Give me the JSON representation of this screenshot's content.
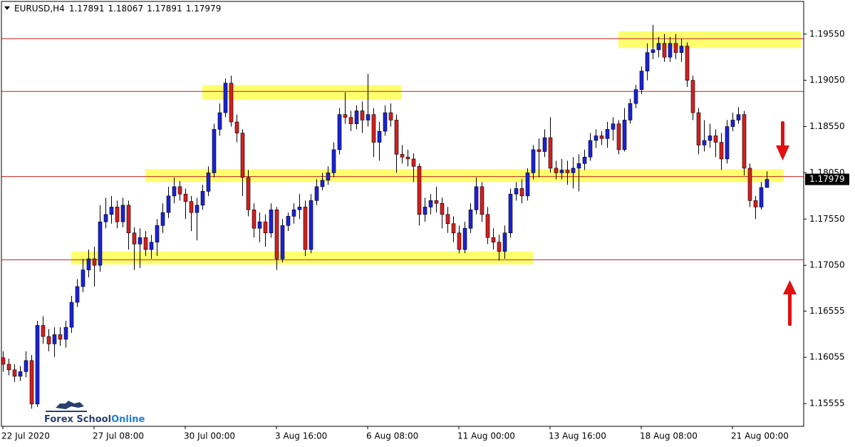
{
  "chart_data": {
    "type": "candlestick",
    "symbol": "EURUSD,H4",
    "open": [
      1.1605,
      1.1598,
      1.1592,
      1.1585,
      1.159,
      1.1602,
      1.1555,
      1.164,
      1.1628,
      1.162,
      1.163,
      1.1625,
      1.1638,
      1.1665,
      1.1682,
      1.17,
      1.1712,
      1.1705,
      1.1752,
      1.176,
      1.1768,
      1.1752,
      1.177,
      1.174,
      1.1728,
      1.1735,
      1.1722,
      1.173,
      1.1748,
      1.1762,
      1.178,
      1.179,
      1.1782,
      1.1774,
      1.1762,
      1.177,
      1.1785,
      1.1805,
      1.1852,
      1.187,
      1.1902,
      1.186,
      1.1848,
      1.18,
      1.1765,
      1.1745,
      1.1752,
      1.174,
      1.1765,
      1.1712,
      1.1748,
      1.1758,
      1.1765,
      1.1768,
      1.1722,
      1.1775,
      1.179,
      1.1797,
      1.1805,
      1.183,
      1.1868,
      1.1865,
      1.1858,
      1.1872,
      1.1862,
      1.1868,
      1.1838,
      1.185,
      1.187,
      1.1862,
      1.1825,
      1.1822,
      1.182,
      1.1812,
      1.176,
      1.1768,
      1.1775,
      1.1772,
      1.176,
      1.175,
      1.174,
      1.1722,
      1.1745,
      1.1765,
      1.179,
      1.176,
      1.1735,
      1.173,
      1.172,
      1.174,
      1.1782,
      1.1788,
      1.178,
      1.1805,
      1.183,
      1.1828,
      1.1843,
      1.181,
      1.1805,
      1.1808,
      1.1805,
      1.181,
      1.1815,
      1.1822,
      1.184,
      1.1845,
      1.1842,
      1.1852,
      1.1858,
      1.183,
      1.1862,
      1.188,
      1.1895,
      1.1915,
      1.1935,
      1.1938,
      1.1945,
      1.193,
      1.1945,
      1.1935,
      1.1942,
      1.1905,
      1.187,
      1.1835,
      1.184,
      1.1845,
      1.1838,
      1.182,
      1.1855,
      1.1862,
      1.1868,
      1.181,
      1.1775,
      1.1768,
      1.17891
    ],
    "high": [
      1.1612,
      1.1604,
      1.1598,
      1.1596,
      1.1612,
      1.1608,
      1.1645,
      1.165,
      1.1636,
      1.1638,
      1.1638,
      1.1645,
      1.1672,
      1.169,
      1.1712,
      1.1722,
      1.1725,
      1.177,
      1.1778,
      1.178,
      1.1775,
      1.1778,
      1.1775,
      1.1746,
      1.1745,
      1.1742,
      1.1738,
      1.1755,
      1.1772,
      1.179,
      1.18,
      1.1796,
      1.1788,
      1.178,
      1.1778,
      1.1792,
      1.1812,
      1.1858,
      1.188,
      1.1907,
      1.191,
      1.1868,
      1.1852,
      1.1808,
      1.1772,
      1.1762,
      1.176,
      1.1772,
      1.1768,
      1.1755,
      1.1762,
      1.1772,
      1.1782,
      1.1775,
      1.1782,
      1.1798,
      1.1805,
      1.1812,
      1.1838,
      1.1875,
      1.1892,
      1.1872,
      1.1878,
      1.1882,
      1.1912,
      1.1875,
      1.186,
      1.1878,
      1.188,
      1.1868,
      1.1835,
      1.183,
      1.1826,
      1.1815,
      1.1778,
      1.1782,
      1.179,
      1.1778,
      1.1768,
      1.1758,
      1.1748,
      1.1752,
      1.1772,
      1.18,
      1.1795,
      1.1768,
      1.1745,
      1.1738,
      1.1748,
      1.1788,
      1.1795,
      1.1798,
      1.181,
      1.1835,
      1.1842,
      1.1852,
      1.1865,
      1.1818,
      1.182,
      1.1818,
      1.1822,
      1.1825,
      1.183,
      1.1848,
      1.1852,
      1.185,
      1.186,
      1.1865,
      1.1862,
      1.1875,
      1.1885,
      1.19,
      1.192,
      1.1945,
      1.1965,
      1.1952,
      1.1955,
      1.1952,
      1.1955,
      1.195,
      1.1946,
      1.191,
      1.1875,
      1.1862,
      1.1858,
      1.1852,
      1.1848,
      1.1862,
      1.187,
      1.1876,
      1.1872,
      1.1815,
      1.178,
      1.1795,
      1.18067
    ],
    "low": [
      1.159,
      1.1586,
      1.1579,
      1.158,
      1.1584,
      1.155,
      1.1552,
      1.162,
      1.1612,
      1.1606,
      1.1618,
      1.1616,
      1.1632,
      1.166,
      1.1676,
      1.1692,
      1.1682,
      1.1698,
      1.1745,
      1.175,
      1.1745,
      1.1746,
      1.1722,
      1.17,
      1.1702,
      1.1715,
      1.1712,
      1.1715,
      1.174,
      1.1756,
      1.1772,
      1.1775,
      1.1755,
      1.1742,
      1.1732,
      1.1765,
      1.178,
      1.18,
      1.1845,
      1.1865,
      1.1855,
      1.1838,
      1.178,
      1.1758,
      1.1735,
      1.173,
      1.1725,
      1.1735,
      1.17,
      1.1708,
      1.1742,
      1.175,
      1.1755,
      1.1715,
      1.1718,
      1.177,
      1.1786,
      1.1792,
      1.18,
      1.1825,
      1.1858,
      1.185,
      1.1852,
      1.1848,
      1.1855,
      1.1822,
      1.1818,
      1.1845,
      1.1855,
      1.1805,
      1.1815,
      1.1812,
      1.1795,
      1.1748,
      1.1752,
      1.176,
      1.1762,
      1.1745,
      1.174,
      1.173,
      1.1718,
      1.1718,
      1.174,
      1.176,
      1.1752,
      1.1728,
      1.1722,
      1.171,
      1.1712,
      1.1735,
      1.1775,
      1.1772,
      1.1775,
      1.1798,
      1.18,
      1.1822,
      1.1805,
      1.1798,
      1.1798,
      1.1792,
      1.1788,
      1.1785,
      1.1808,
      1.1818,
      1.1832,
      1.1835,
      1.1832,
      1.184,
      1.1825,
      1.1828,
      1.1858,
      1.1875,
      1.189,
      1.1905,
      1.1928,
      1.193,
      1.1925,
      1.1925,
      1.1928,
      1.1925,
      1.1898,
      1.1862,
      1.1825,
      1.1828,
      1.1832,
      1.1822,
      1.1808,
      1.1815,
      1.185,
      1.1858,
      1.1802,
      1.1768,
      1.1755,
      1.1765,
      1.17891
    ],
    "close": [
      1.1598,
      1.1592,
      1.1585,
      1.159,
      1.1602,
      1.1555,
      1.164,
      1.1628,
      1.162,
      1.163,
      1.1625,
      1.1638,
      1.1665,
      1.1682,
      1.17,
      1.1712,
      1.1705,
      1.1752,
      1.176,
      1.1768,
      1.1752,
      1.177,
      1.174,
      1.1728,
      1.1735,
      1.1722,
      1.173,
      1.1748,
      1.1762,
      1.178,
      1.179,
      1.1782,
      1.1774,
      1.1762,
      1.177,
      1.1785,
      1.1805,
      1.1852,
      1.187,
      1.1902,
      1.186,
      1.1848,
      1.18,
      1.1765,
      1.1745,
      1.1752,
      1.174,
      1.1765,
      1.1712,
      1.1748,
      1.1758,
      1.1765,
      1.1768,
      1.1722,
      1.1775,
      1.179,
      1.1797,
      1.1805,
      1.183,
      1.1868,
      1.1865,
      1.1858,
      1.1872,
      1.1862,
      1.1868,
      1.1838,
      1.185,
      1.187,
      1.1862,
      1.1825,
      1.1822,
      1.182,
      1.1812,
      1.176,
      1.1768,
      1.1775,
      1.1772,
      1.176,
      1.175,
      1.174,
      1.1722,
      1.1745,
      1.1765,
      1.179,
      1.176,
      1.1735,
      1.173,
      1.172,
      1.174,
      1.1782,
      1.1788,
      1.178,
      1.1805,
      1.183,
      1.1828,
      1.1843,
      1.181,
      1.1805,
      1.1808,
      1.1805,
      1.181,
      1.1815,
      1.1822,
      1.184,
      1.1845,
      1.1842,
      1.1852,
      1.1858,
      1.183,
      1.1862,
      1.188,
      1.1895,
      1.1915,
      1.1935,
      1.1938,
      1.1945,
      1.193,
      1.1945,
      1.1935,
      1.1942,
      1.1905,
      1.187,
      1.1835,
      1.184,
      1.1845,
      1.1838,
      1.182,
      1.1855,
      1.1862,
      1.1868,
      1.181,
      1.1775,
      1.1768,
      1.17891,
      1.17979
    ],
    "up_color": "#1b22d8",
    "down_color": "#d41f1f",
    "wick_color": "#000000",
    "xlim": [
      -0.25,
      140.5
    ],
    "xticks": [
      {
        "value": 0,
        "label": "22 Jul 2020"
      },
      {
        "value": 16,
        "label": "27 Jul 08:00"
      },
      {
        "value": 32,
        "label": "30 Jul 00:00"
      },
      {
        "value": 48,
        "label": "3 Aug 16:00"
      },
      {
        "value": 64,
        "label": "6 Aug 08:00"
      },
      {
        "value": 80,
        "label": "11 Aug 00:00"
      },
      {
        "value": 96,
        "label": "13 Aug 16:00"
      },
      {
        "value": 112,
        "label": "18 Aug 08:00"
      },
      {
        "value": 128,
        "label": "21 Aug 00:00"
      }
    ],
    "ylim": [
      1.15309,
      1.19903
    ],
    "yticks": [
      {
        "value": 1.1955,
        "label": "1.19550"
      },
      {
        "value": 1.1905,
        "label": "1.19050"
      },
      {
        "value": 1.1855,
        "label": "1.18550"
      },
      {
        "value": 1.1805,
        "label": "1.18050"
      },
      {
        "value": 1.1755,
        "label": "1.17550"
      },
      {
        "value": 1.1705,
        "label": "1.17050"
      },
      1.16555,
      1.16055,
      1.15555
    ],
    "grid": false,
    "levels": [
      1.195,
      1.1893,
      1.1801,
      1.1711
    ],
    "level_color": "#c81e1e",
    "zones": [
      {
        "start": 108,
        "end": 140,
        "high": 1.1958,
        "low": 1.194
      },
      {
        "start": 35,
        "end": 70,
        "high": 1.19,
        "low": 1.1884
      },
      {
        "start": 25,
        "end": 137,
        "high": 1.1809,
        "low": 1.1795
      },
      {
        "start": 12,
        "end": 93,
        "high": 1.172,
        "low": 1.1706
      }
    ],
    "zone_color": "#ffff55",
    "watermark": [
      "Forex School",
      "Online"
    ]
  }
}
